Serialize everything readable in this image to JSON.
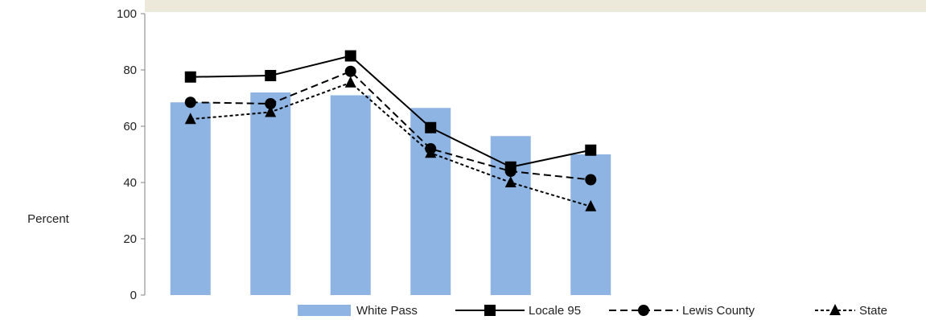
{
  "chart_data": {
    "type": "bar",
    "categories": [
      "",
      "",
      "",
      "",
      "",
      ""
    ],
    "ylabel": "Percent",
    "ylim": [
      0,
      100
    ],
    "yticks": [
      0,
      20,
      40,
      60,
      80,
      100
    ],
    "grid": false,
    "legend_position": "bottom-right",
    "header_band_color": "#ece9db",
    "series": [
      {
        "name": "White Pass",
        "kind": "bar",
        "color": "#8db4e2",
        "values": [
          68.5,
          72,
          71,
          66.5,
          56.5,
          50
        ]
      },
      {
        "name": "Locale 95",
        "kind": "line",
        "line_style": "solid",
        "marker": "square",
        "color": "#000000",
        "values": [
          77.5,
          78,
          85,
          59.5,
          45.5,
          51.5
        ]
      },
      {
        "name": "Lewis County",
        "kind": "line",
        "line_style": "dashed",
        "marker": "circle",
        "color": "#000000",
        "values": [
          68.5,
          68,
          79.5,
          52,
          44,
          41
        ]
      },
      {
        "name": "State",
        "kind": "line",
        "line_style": "dotted",
        "marker": "triangle",
        "color": "#000000",
        "values": [
          62.5,
          65,
          75.5,
          50.5,
          40,
          31.5
        ]
      }
    ]
  }
}
